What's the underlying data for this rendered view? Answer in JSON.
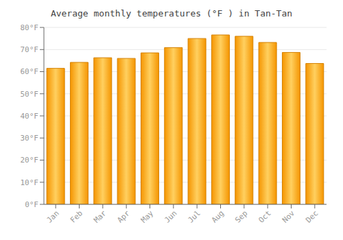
{
  "chart_data": {
    "type": "bar",
    "title": "Average monthly temperatures (°F ) in Tan-Tan",
    "categories": [
      "Jan",
      "Feb",
      "Mar",
      "Apr",
      "May",
      "Jun",
      "Jul",
      "Aug",
      "Sep",
      "Oct",
      "Nov",
      "Dec"
    ],
    "values": [
      61.5,
      64.2,
      66.3,
      66.0,
      68.5,
      70.9,
      75.0,
      76.6,
      76.0,
      73.2,
      68.7,
      63.7
    ],
    "color": "#F59500",
    "ylim": [
      0,
      80
    ],
    "yticks": [
      {
        "value": 0,
        "label": "0°F"
      },
      {
        "value": 10,
        "label": "10°F"
      },
      {
        "value": 20,
        "label": "20°F"
      },
      {
        "value": 30,
        "label": "30°F"
      },
      {
        "value": 40,
        "label": "40°F"
      },
      {
        "value": 50,
        "label": "50°F"
      },
      {
        "value": 60,
        "label": "60°F"
      },
      {
        "value": 70,
        "label": "70°F"
      },
      {
        "value": 80,
        "label": "80°F"
      }
    ],
    "grid": true
  }
}
